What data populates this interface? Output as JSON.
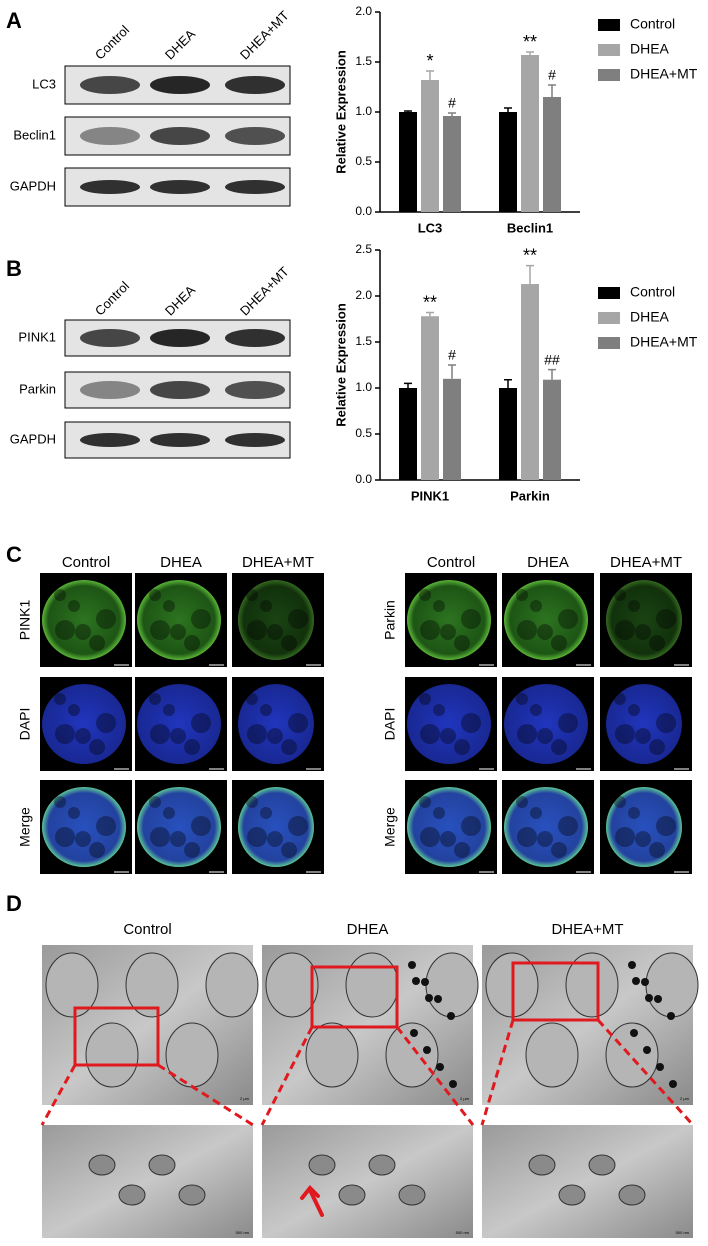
{
  "panel_labels": [
    "A",
    "B",
    "C",
    "D"
  ],
  "blots": [
    {
      "lanes": [
        "Control",
        "DHEA",
        "DHEA+MT"
      ],
      "rows": [
        "LC3",
        "Beclin1",
        "GAPDH"
      ]
    },
    {
      "lanes": [
        "Control",
        "DHEA",
        "DHEA+MT"
      ],
      "rows": [
        "PINK1",
        "Parkin",
        "GAPDH"
      ]
    }
  ],
  "immunofluorescence": [
    {
      "columns": [
        "Control",
        "DHEA",
        "DHEA+MT"
      ],
      "rows": [
        "PINK1",
        "DAPI",
        "Merge"
      ],
      "scale_bar": "100 μm"
    },
    {
      "columns": [
        "Control",
        "DHEA",
        "DHEA+MT"
      ],
      "rows": [
        "Parkin",
        "DAPI",
        "Merge"
      ],
      "scale_bar": "100 μm"
    }
  ],
  "tem": {
    "columns": [
      "Control",
      "DHEA",
      "DHEA+MT"
    ],
    "scale_bar_overview": "2 μm",
    "scale_bar_detail": "500 nm"
  },
  "chart_data": [
    {
      "type": "bar",
      "ylabel": "Relative Expression",
      "categories": [
        "LC3",
        "Beclin1"
      ],
      "series": [
        {
          "name": "Control",
          "color": "#000000",
          "values": [
            1.0,
            1.0
          ],
          "errors": [
            0.01,
            0.04
          ]
        },
        {
          "name": "DHEA",
          "color": "#a6a6a6",
          "values": [
            1.32,
            1.57
          ],
          "errors": [
            0.09,
            0.03
          ],
          "markers": [
            "*",
            "**"
          ]
        },
        {
          "name": "DHEA+MT",
          "color": "#7f7f7f",
          "values": [
            0.96,
            1.15
          ],
          "errors": [
            0.03,
            0.12
          ],
          "markers": [
            "#",
            "#"
          ]
        }
      ],
      "ylim": [
        0,
        2
      ],
      "yticks": [
        {
          "value": 0,
          "label": "0.0"
        },
        0.5,
        {
          "value": 1,
          "label": "1.0"
        },
        1.5,
        {
          "value": 2,
          "label": "2.0"
        }
      ],
      "legend": "right"
    },
    {
      "type": "bar",
      "ylabel": "Relative Expression",
      "categories": [
        "PINK1",
        "Parkin"
      ],
      "series": [
        {
          "name": "Control",
          "color": "#000000",
          "values": [
            1.0,
            1.0
          ],
          "errors": [
            0.05,
            0.09
          ]
        },
        {
          "name": "DHEA",
          "color": "#a6a6a6",
          "values": [
            1.78,
            2.13
          ],
          "errors": [
            0.04,
            0.2
          ],
          "markers": [
            "**",
            "**"
          ]
        },
        {
          "name": "DHEA+MT",
          "color": "#7f7f7f",
          "values": [
            1.1,
            1.09
          ],
          "errors": [
            0.15,
            0.11
          ],
          "markers": [
            "#",
            "##"
          ]
        }
      ],
      "ylim": [
        0,
        2.5
      ],
      "yticks": [
        {
          "value": 0,
          "label": "0.0"
        },
        0.5,
        {
          "value": 1,
          "label": "1.0"
        },
        1.5,
        {
          "value": 2,
          "label": "2.0"
        },
        2.5
      ],
      "legend": "right"
    }
  ]
}
